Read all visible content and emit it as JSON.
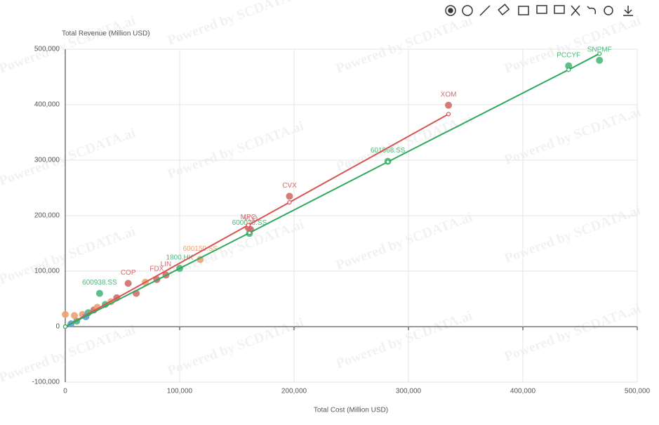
{
  "chart_data": {
    "type": "scatter",
    "xlabel": "Total Cost (Million USD)",
    "ylabel": "Total Revenue (Million USD)",
    "watermark": "Powered by SCDATA.ai",
    "xlim": [
      0,
      500000
    ],
    "ylim": [
      -100000,
      500000
    ],
    "xticks": [
      0,
      {
        "value": 100000,
        "label": "100,000"
      },
      {
        "value": 200000,
        "label": "200,000"
      },
      {
        "value": 300000,
        "label": "300,000"
      },
      {
        "value": 400000,
        "label": "400,000"
      },
      {
        "value": 500000,
        "label": "500,000"
      }
    ],
    "yticks": [
      {
        "value": -100000,
        "label": "-100,000"
      },
      0,
      {
        "value": 100000,
        "label": "100,000"
      },
      {
        "value": 200000,
        "label": "200,000"
      },
      {
        "value": 300000,
        "label": "300,000"
      },
      {
        "value": 400000,
        "label": "400,000"
      },
      {
        "value": 500000,
        "label": "500,000"
      }
    ],
    "grid": true,
    "series": [
      {
        "type": "scatter",
        "color": "#4cb87a",
        "x": [
          467000,
          440000,
          282000,
          161000,
          100000,
          30000,
          10000,
          20000,
          35000
        ],
        "values": [
          480000,
          470000,
          298000,
          168000,
          105000,
          60000,
          10000,
          25000,
          40000
        ],
        "labels": [
          "SNPMF",
          "PCCYF",
          "601868.SS",
          "600028.SS",
          "1800.HK",
          "600938.SS",
          null,
          null,
          null
        ]
      },
      {
        "type": "scatter",
        "color": "#d36b6b",
        "x": [
          335000,
          196000,
          160000,
          162000,
          55000,
          88000,
          80000,
          45000,
          25000,
          62000
        ],
        "values": [
          399000,
          235000,
          178000,
          175000,
          78000,
          93000,
          85000,
          52000,
          30000,
          60000
        ],
        "labels": [
          "XOM",
          "CVX",
          "MPC",
          "VLO",
          "COP",
          "LIN",
          "FDX",
          null,
          null,
          null
        ]
      },
      {
        "type": "scatter",
        "color": "#f0a070",
        "x": [
          118000,
          70000,
          15000,
          8000,
          40000,
          28000,
          0
        ],
        "values": [
          121000,
          80000,
          22000,
          20000,
          45000,
          35000,
          22000
        ],
        "labels": [
          "600150.SS",
          null,
          null,
          null,
          null,
          null,
          null
        ]
      },
      {
        "type": "scatter",
        "color": "#5b9bd5",
        "x": [
          18000,
          5000
        ],
        "values": [
          18000,
          5000
        ],
        "labels": [
          null,
          null
        ]
      },
      {
        "type": "line",
        "color": "#d9534f",
        "x": [
          0,
          160000,
          196000,
          335000
        ],
        "values": [
          0,
          183000,
          224000,
          383000
        ]
      },
      {
        "type": "line",
        "color": "#2eaa5e",
        "x": [
          0,
          161000,
          282000,
          440000,
          467000
        ],
        "values": [
          0,
          169000,
          297000,
          463000,
          492000
        ]
      }
    ]
  }
}
